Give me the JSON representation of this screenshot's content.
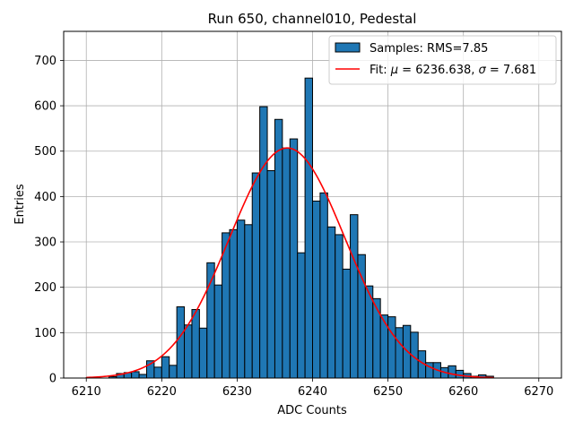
{
  "chart_data": {
    "type": "bar",
    "title": "Run 650, channel010, Pedestal",
    "xlabel": "ADC Counts",
    "ylabel": "Entries",
    "xlim": [
      6207,
      6273
    ],
    "ylim": [
      0,
      764
    ],
    "xticks": [
      6210,
      6220,
      6230,
      6240,
      6250,
      6260,
      6270
    ],
    "yticks": [
      0,
      100,
      200,
      300,
      400,
      500,
      600,
      700
    ],
    "grid": true,
    "legend_position": "top-right",
    "bin_width": 1,
    "bins": {
      "name": "Samples: RMS=7.85",
      "color": "#1f77b4",
      "edge_color": "#000000",
      "bin_starts": [
        6210,
        6211,
        6212,
        6213,
        6214,
        6215,
        6216,
        6217,
        6218,
        6219,
        6220,
        6221,
        6222,
        6223,
        6224,
        6225,
        6226,
        6227,
        6228,
        6229,
        6230,
        6231,
        6232,
        6233,
        6234,
        6235,
        6236,
        6237,
        6238,
        6239,
        6240,
        6241,
        6242,
        6243,
        6244,
        6245,
        6246,
        6247,
        6248,
        6249,
        6250,
        6251,
        6252,
        6253,
        6254,
        6255,
        6256,
        6257,
        6258,
        6259,
        6260,
        6261,
        6262,
        6263
      ],
      "counts": [
        1,
        0,
        0,
        3,
        10,
        12,
        14,
        8,
        38,
        24,
        47,
        28,
        157,
        117,
        151,
        110,
        254,
        205,
        320,
        327,
        348,
        338,
        452,
        598,
        457,
        570,
        507,
        527,
        276,
        661,
        390,
        408,
        333,
        316,
        240,
        360,
        272,
        203,
        175,
        139,
        135,
        111,
        116,
        101,
        60,
        34,
        34,
        23,
        27,
        17,
        10,
        4,
        7,
        4
      ]
    },
    "fit": {
      "name": "Fit: $\\mu$ = 6236.638, $\\sigma$ = 7.681",
      "color": "#ff0000",
      "mu": 6236.638,
      "sigma": 7.681,
      "amplitude": 507,
      "x_range": [
        6210,
        6264
      ]
    }
  },
  "legend": {
    "samples_label": "Samples: RMS=7.85",
    "fit_prefix": "Fit: ",
    "mu_symbol": "μ",
    "fit_mid": " = 6236.638, ",
    "sigma_symbol": "σ",
    "fit_suffix": " = 7.681"
  }
}
